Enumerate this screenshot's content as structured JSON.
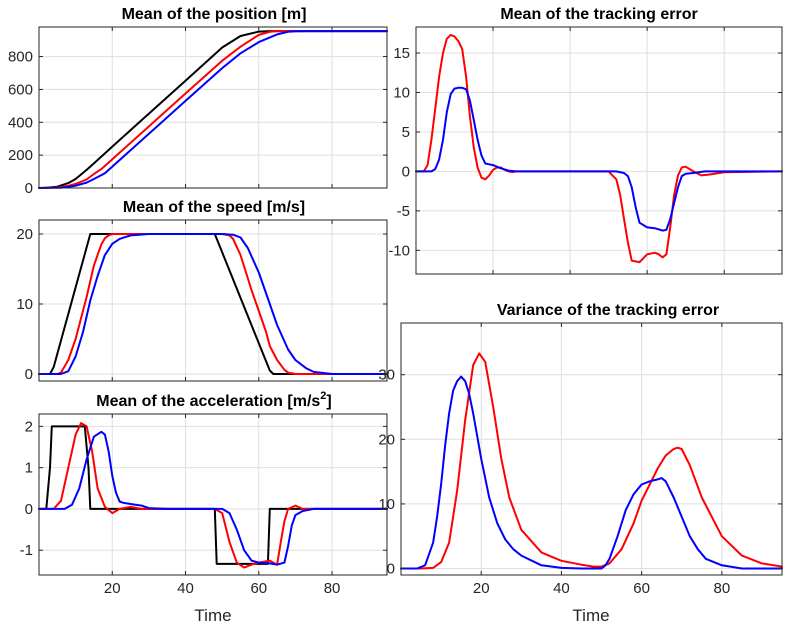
{
  "chart_data": [
    {
      "id": "position",
      "type": "line",
      "title": "Mean of the position [m]",
      "xlim": [
        0,
        95
      ],
      "ylim": [
        0,
        980
      ],
      "xticks": [
        20,
        40,
        60,
        80
      ],
      "yticks": [
        0,
        200,
        400,
        600,
        800
      ],
      "show_xticklabels": false,
      "grid": true,
      "series": [
        {
          "color": "#000000",
          "x": [
            0,
            2,
            5,
            8,
            10,
            13,
            15,
            20,
            30,
            40,
            50,
            55,
            60,
            63,
            65,
            70,
            80,
            95
          ],
          "y": [
            0,
            1,
            8,
            30,
            55,
            110,
            150,
            252,
            453,
            653,
            855,
            925,
            952,
            955,
            955,
            955,
            955,
            955
          ]
        },
        {
          "color": "#ff0000",
          "x": [
            0,
            3,
            5,
            8,
            10,
            13,
            15,
            17,
            20,
            30,
            40,
            50,
            55,
            60,
            63,
            65,
            68,
            70,
            80,
            95
          ],
          "y": [
            0,
            1,
            3,
            13,
            25,
            52,
            85,
            115,
            175,
            375,
            575,
            775,
            860,
            932,
            951,
            955,
            955,
            955,
            955,
            955
          ]
        },
        {
          "color": "#0000ff",
          "x": [
            0,
            4,
            6,
            8,
            10,
            13,
            15,
            18,
            20,
            30,
            40,
            50,
            55,
            60,
            65,
            68,
            70,
            73,
            75,
            80,
            95
          ],
          "y": [
            0,
            1,
            2,
            7,
            14,
            33,
            55,
            90,
            130,
            330,
            530,
            730,
            820,
            888,
            935,
            951,
            954,
            955,
            955,
            955,
            955
          ]
        }
      ]
    },
    {
      "id": "speed",
      "type": "line",
      "title": "Mean of the speed [m/s]",
      "xlim": [
        0,
        95
      ],
      "ylim": [
        -1,
        22
      ],
      "xticks": [
        20,
        40,
        60,
        80
      ],
      "yticks": [
        0,
        10,
        20
      ],
      "show_xticklabels": false,
      "grid": true,
      "series": [
        {
          "color": "#000000",
          "x": [
            0,
            3,
            4,
            14,
            48,
            63,
            64,
            95
          ],
          "y": [
            0,
            0,
            1,
            20,
            20,
            0.5,
            0,
            0
          ]
        },
        {
          "color": "#ff0000",
          "x": [
            0,
            5,
            6,
            8,
            10,
            13,
            15,
            17,
            18,
            19,
            20,
            25,
            30,
            40,
            50,
            52,
            53,
            55,
            58,
            60,
            62,
            63,
            65,
            67,
            68,
            70,
            95
          ],
          "y": [
            0,
            0,
            0.2,
            2,
            5,
            11,
            15.5,
            18.5,
            19.4,
            19.8,
            20,
            20,
            20,
            20,
            20,
            19.8,
            19.3,
            17,
            12,
            9,
            6,
            4,
            2,
            0.6,
            0.2,
            0,
            0
          ]
        },
        {
          "color": "#0000ff",
          "x": [
            0,
            6,
            8,
            10,
            12,
            14,
            16,
            18,
            20,
            22,
            25,
            30,
            40,
            50,
            53,
            55,
            57,
            60,
            63,
            65,
            68,
            70,
            73,
            75,
            80,
            95
          ],
          "y": [
            0,
            0,
            0.4,
            2.5,
            6,
            10.5,
            14,
            17,
            18.6,
            19.3,
            19.8,
            20,
            20,
            20,
            19.9,
            19.5,
            18,
            14.5,
            10,
            7,
            3.5,
            2,
            0.8,
            0.3,
            0,
            0
          ]
        }
      ]
    },
    {
      "id": "acceleration",
      "type": "line",
      "title": "Mean of the acceleration [m/s",
      "title_sup": "2",
      "title_end": "]",
      "xlim": [
        0,
        95
      ],
      "ylim": [
        -1.6,
        2.3
      ],
      "xticks": [
        20,
        40,
        60,
        80
      ],
      "yticks": [
        -1,
        0,
        1,
        2
      ],
      "show_xticklabels": true,
      "xlabel": "Time",
      "grid": true,
      "series": [
        {
          "color": "#000000",
          "x": [
            0,
            2,
            3,
            3.5,
            12.5,
            13.5,
            14,
            48,
            48.5,
            62.5,
            63,
            95
          ],
          "y": [
            0,
            0,
            1,
            2,
            2,
            1,
            0,
            0,
            -1.33,
            -1.33,
            0,
            0
          ]
        },
        {
          "color": "#ff0000",
          "x": [
            0,
            4,
            6,
            8,
            10,
            11.5,
            13,
            14.5,
            16,
            18,
            20,
            22,
            25,
            28,
            30,
            35,
            48,
            50,
            52,
            54,
            56,
            58,
            60,
            63,
            65,
            66,
            67,
            68,
            70,
            72,
            75,
            80,
            95
          ],
          "y": [
            0,
            0,
            0.2,
            1,
            1.8,
            2.08,
            2.0,
            1.4,
            0.5,
            0.05,
            -0.1,
            0,
            0.05,
            0,
            0,
            0,
            0,
            -0.1,
            -0.8,
            -1.3,
            -1.42,
            -1.35,
            -1.3,
            -1.25,
            -1.35,
            -0.8,
            -0.3,
            0,
            0.08,
            0,
            0,
            0,
            0
          ]
        },
        {
          "color": "#0000ff",
          "x": [
            0,
            7,
            9,
            11,
            13,
            15,
            17,
            18,
            19,
            20,
            21,
            22,
            23,
            25,
            28,
            30,
            35,
            40,
            50,
            52,
            54,
            56,
            58,
            60,
            63,
            65,
            67,
            68,
            69,
            70,
            72,
            75,
            80,
            95
          ],
          "y": [
            0,
            0,
            0.1,
            0.5,
            1.2,
            1.75,
            1.87,
            1.8,
            1.4,
            0.8,
            0.4,
            0.18,
            0.15,
            0.12,
            0.08,
            0.02,
            0,
            0,
            0,
            -0.1,
            -0.5,
            -1.0,
            -1.25,
            -1.3,
            -1.32,
            -1.35,
            -1.3,
            -0.9,
            -0.4,
            -0.15,
            -0.05,
            0,
            0,
            0
          ]
        }
      ]
    },
    {
      "id": "tracking-error-mean",
      "type": "line",
      "title": "Mean of the tracking error",
      "xlim": [
        0,
        95
      ],
      "ylim": [
        -13,
        18.3
      ],
      "xticks": [
        20,
        40,
        60,
        80
      ],
      "yticks": [
        -10,
        -5,
        0,
        5,
        10,
        15
      ],
      "show_xticklabels": false,
      "grid": true,
      "series": [
        {
          "color": "#ff0000",
          "x": [
            0,
            2,
            3,
            4,
            5,
            6,
            7,
            8,
            9,
            10,
            11,
            12,
            13,
            14,
            15,
            16,
            17,
            18,
            19,
            20,
            21,
            22,
            23,
            24,
            25,
            26,
            27,
            28,
            29,
            30,
            32,
            35,
            40,
            45,
            50,
            52,
            53,
            54,
            55,
            56,
            58,
            60,
            62,
            63,
            64,
            65,
            66,
            67,
            68,
            69,
            70,
            72,
            74,
            76,
            80,
            95
          ],
          "y": [
            0,
            0,
            0.8,
            4,
            8,
            12,
            15,
            16.8,
            17.3,
            17.1,
            16.5,
            15.5,
            12,
            7,
            3,
            0.5,
            -0.8,
            -1,
            -0.5,
            0.2,
            0.5,
            0.5,
            0.2,
            0,
            -0.1,
            0,
            0,
            0,
            0,
            0,
            0,
            0,
            0,
            0,
            0,
            -1,
            -3,
            -6,
            -9,
            -11.3,
            -11.5,
            -10.5,
            -10.3,
            -10.5,
            -10.9,
            -10.5,
            -7,
            -3,
            -0.5,
            0.5,
            0.6,
            0,
            -0.5,
            -0.4,
            -0.1,
            0
          ]
        },
        {
          "color": "#0000ff",
          "x": [
            0,
            4,
            5,
            6,
            7,
            8,
            9,
            10,
            11,
            12,
            13,
            14,
            15,
            16,
            17,
            18,
            19,
            20,
            22,
            24,
            26,
            28,
            30,
            35,
            40,
            45,
            50,
            52,
            54,
            55,
            56,
            57,
            58,
            60,
            62,
            64,
            65,
            66,
            67,
            68,
            69,
            70,
            72,
            75,
            80,
            95
          ],
          "y": [
            0,
            0,
            0.3,
            1.5,
            4,
            7.5,
            9.8,
            10.5,
            10.6,
            10.6,
            10.4,
            9,
            6.5,
            4,
            2,
            1,
            0.9,
            0.8,
            0.4,
            0.1,
            0,
            0,
            0,
            0,
            0,
            0,
            0,
            0,
            -0.2,
            -0.6,
            -2,
            -4.5,
            -6.5,
            -7.1,
            -7.2,
            -7.5,
            -7.4,
            -6,
            -4,
            -2,
            -0.6,
            -0.3,
            -0.2,
            0,
            0,
            0
          ]
        }
      ]
    },
    {
      "id": "tracking-error-variance",
      "type": "line",
      "title": "Variance of the tracking error",
      "xlim": [
        0,
        95
      ],
      "ylim": [
        -1,
        38
      ],
      "xticks": [
        20,
        40,
        60,
        80
      ],
      "yticks": [
        0,
        10,
        20,
        30
      ],
      "show_xticklabels": true,
      "xlabel": "Time",
      "grid": true,
      "series": [
        {
          "color": "#ff0000",
          "x": [
            0,
            5,
            8,
            10,
            12,
            14,
            16,
            18,
            19.5,
            21,
            23,
            25,
            27,
            30,
            35,
            40,
            45,
            48,
            50,
            52,
            55,
            58,
            60,
            62,
            64,
            66,
            68,
            69,
            70,
            72,
            75,
            80,
            85,
            90,
            95
          ],
          "y": [
            0,
            0,
            0.1,
            1,
            4,
            12,
            23,
            31.5,
            33.3,
            32,
            25,
            17,
            11,
            6,
            2.5,
            1.2,
            0.6,
            0.3,
            0.3,
            0.8,
            3,
            7,
            10.5,
            13,
            15.5,
            17.5,
            18.5,
            18.7,
            18.5,
            16,
            11,
            5,
            2,
            0.8,
            0.3
          ]
        },
        {
          "color": "#0000ff",
          "x": [
            0,
            4,
            6,
            8,
            9,
            10,
            11,
            12,
            13,
            14,
            15,
            16,
            17,
            18,
            20,
            22,
            24,
            26,
            28,
            30,
            35,
            40,
            45,
            50,
            51,
            52,
            54,
            56,
            58,
            60,
            62,
            64,
            65,
            66,
            68,
            70,
            72,
            74,
            76,
            80,
            85,
            90,
            95
          ],
          "y": [
            0,
            0,
            0.5,
            4,
            8,
            13,
            19,
            24,
            27.5,
            29,
            29.7,
            29,
            27,
            24,
            17,
            11,
            7,
            4.5,
            3,
            2,
            0.5,
            0.1,
            0,
            0,
            0.5,
            1.5,
            5,
            9,
            11.5,
            13,
            13.5,
            13.8,
            14,
            13.5,
            11,
            8,
            5,
            3,
            1.5,
            0.5,
            0,
            0,
            0
          ]
        }
      ]
    }
  ]
}
